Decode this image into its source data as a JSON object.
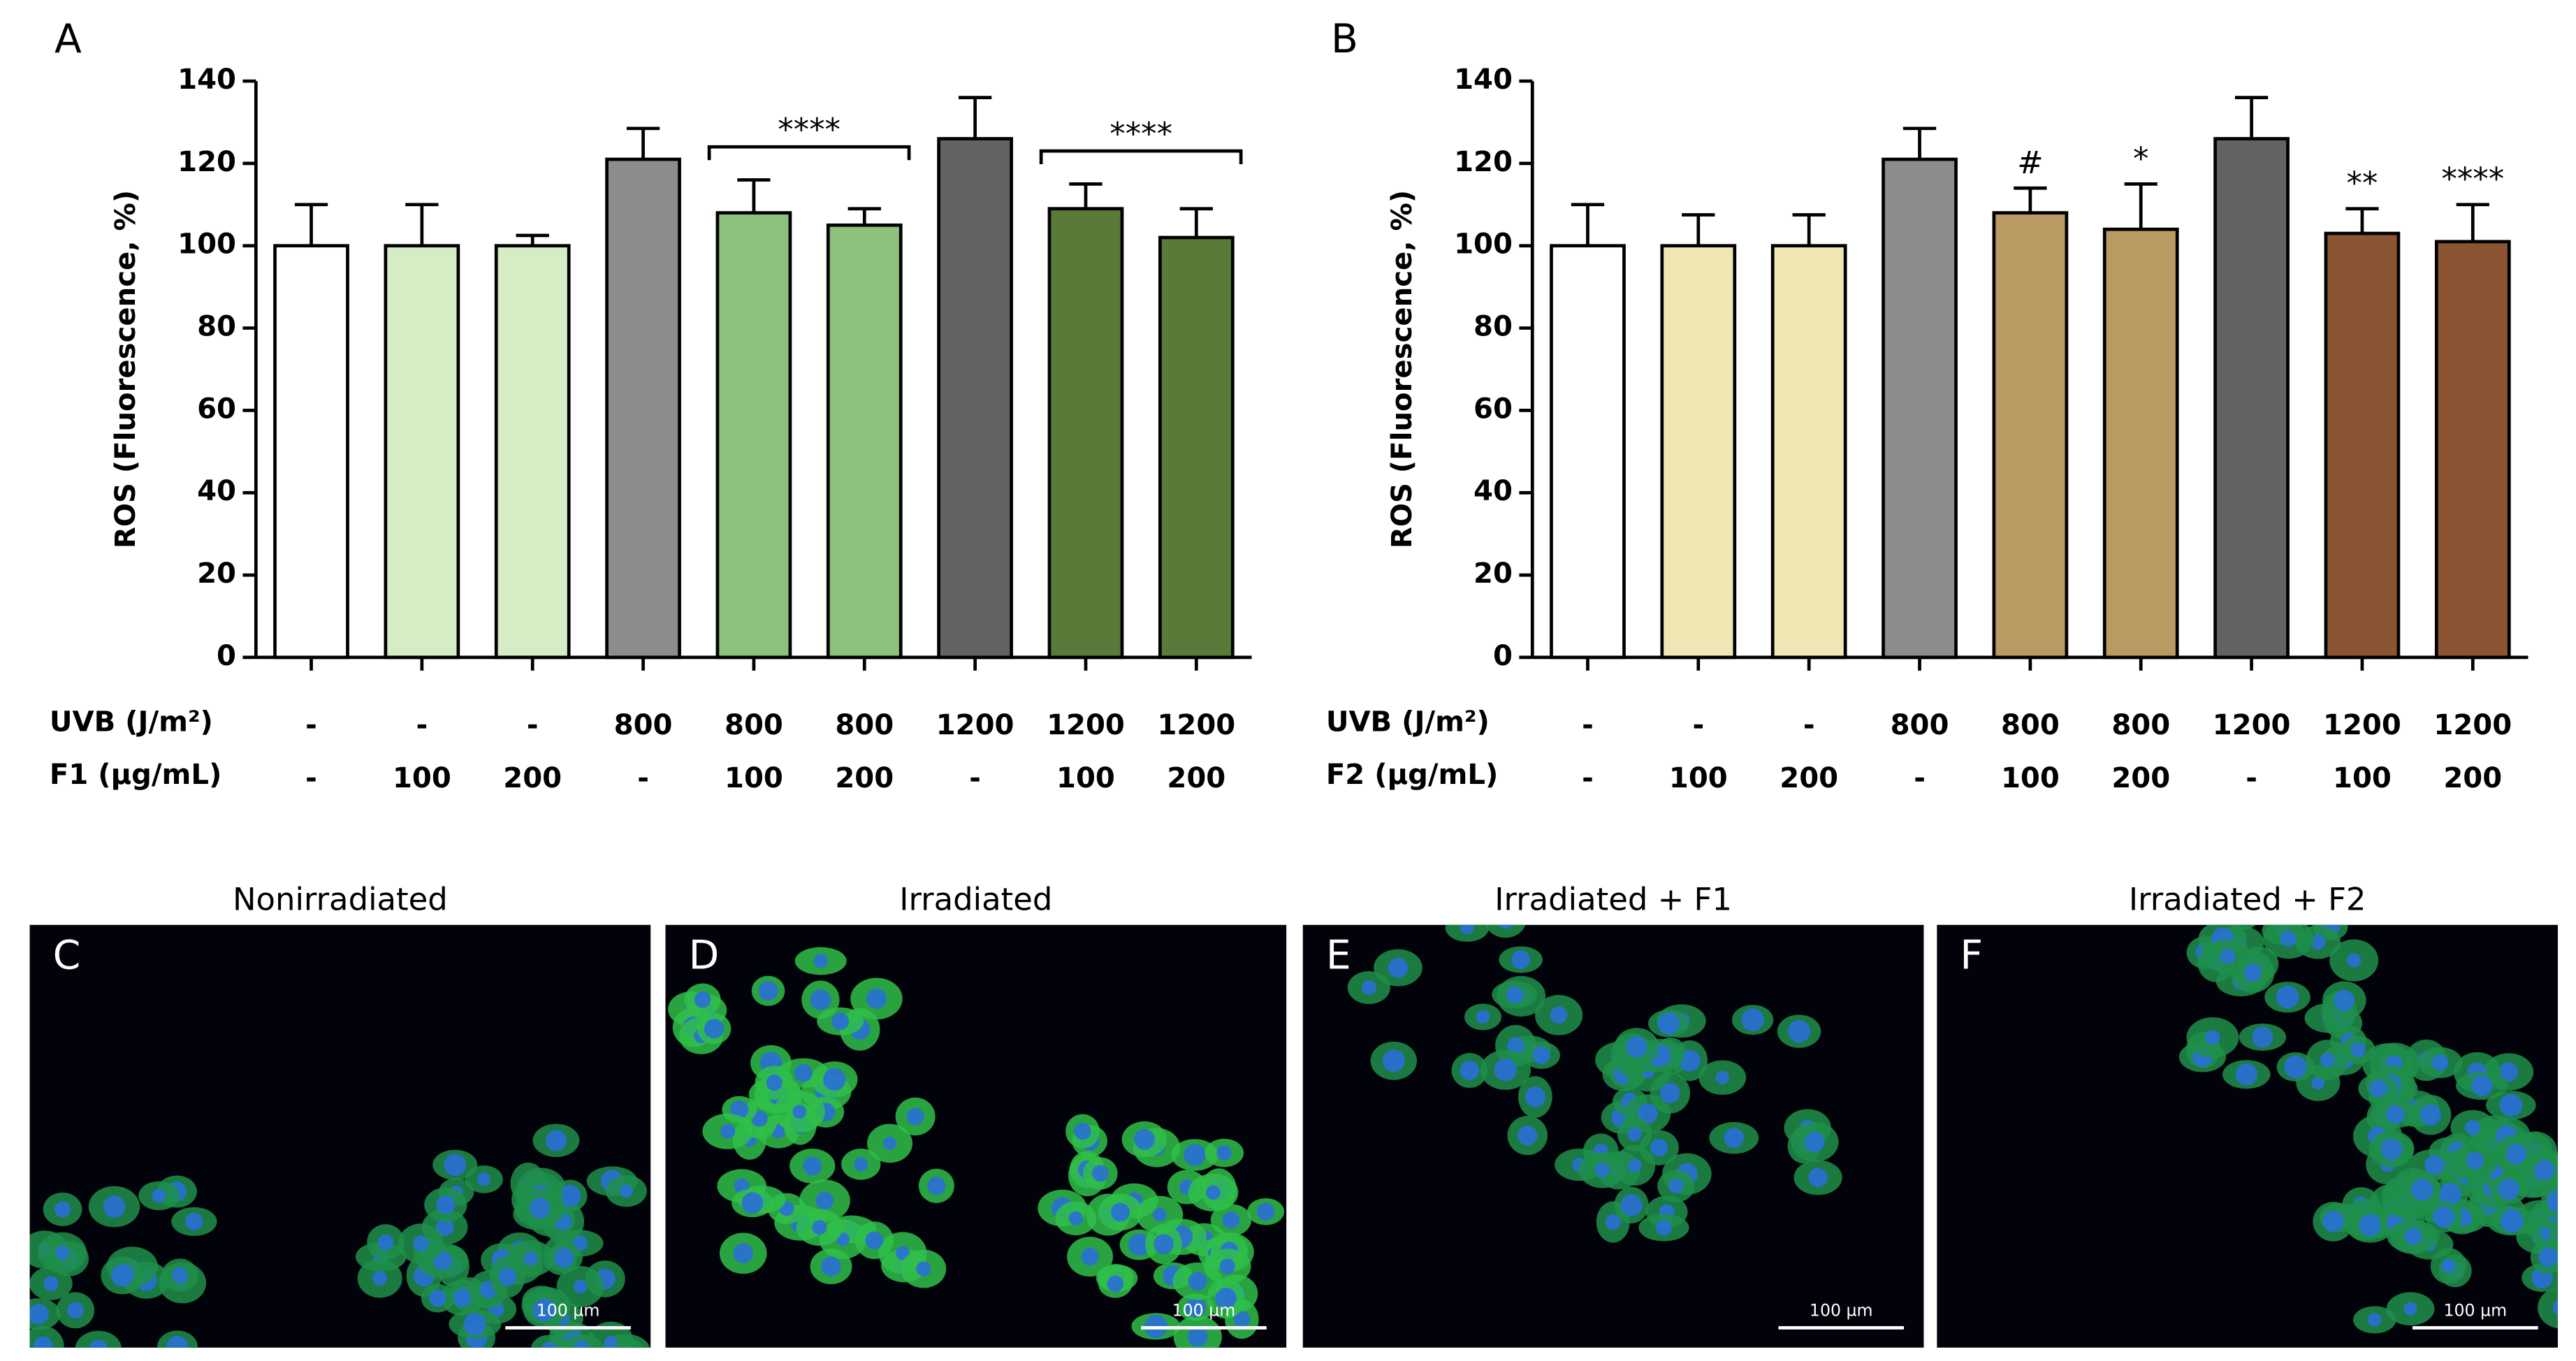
{
  "chart_data": [
    {
      "type": "bar",
      "panel": "A",
      "y_label": "ROS (Fluorescence, %)",
      "ylim": [
        0,
        140
      ],
      "yticks": [
        0,
        20,
        40,
        60,
        80,
        100,
        120,
        140
      ],
      "x_label_rows": [
        {
          "name": "UVB (J/m²)",
          "labels": [
            "-",
            "-",
            "-",
            "800",
            "800",
            "800",
            "1200",
            "1200",
            "1200"
          ]
        },
        {
          "name": "F1 (µg/mL)",
          "labels": [
            "-",
            "100",
            "200",
            "-",
            "100",
            "200",
            "-",
            "100",
            "200"
          ]
        }
      ],
      "series": [
        {
          "values": [
            100,
            100,
            100,
            121,
            108,
            105,
            126,
            109,
            102
          ],
          "errors": [
            10,
            10,
            2.5,
            7.5,
            8,
            4,
            10,
            6,
            7
          ],
          "colors": [
            "#ffffff",
            "#d5ecc5",
            "#d5ecc5",
            "#8c8c8c",
            "#8bc17a",
            "#8bc17a",
            "#636363",
            "#5a7a3a",
            "#5a7a3a"
          ]
        }
      ],
      "annotations": [
        {
          "text": "****",
          "bars": [
            4,
            5
          ]
        },
        {
          "text": "****",
          "bars": [
            7,
            8
          ]
        }
      ]
    },
    {
      "type": "bar",
      "panel": "B",
      "y_label": "ROS (Fluorescence, %)",
      "ylim": [
        0,
        140
      ],
      "yticks": [
        0,
        20,
        40,
        60,
        80,
        100,
        120,
        140
      ],
      "x_label_rows": [
        {
          "name": "UVB (J/m²)",
          "labels": [
            "-",
            "-",
            "-",
            "800",
            "800",
            "800",
            "1200",
            "1200",
            "1200"
          ]
        },
        {
          "name": "F2 (µg/mL)",
          "labels": [
            "-",
            "100",
            "200",
            "-",
            "100",
            "200",
            "-",
            "100",
            "200"
          ]
        }
      ],
      "series": [
        {
          "values": [
            100,
            100,
            100,
            121,
            108,
            104,
            126,
            103,
            101
          ],
          "errors": [
            10,
            7.5,
            7.5,
            7.5,
            6,
            11,
            10,
            6,
            9
          ],
          "colors": [
            "#ffffff",
            "#efe8b5",
            "#efe8b5",
            "#8c8c8c",
            "#b89a62",
            "#b89a62",
            "#636363",
            "#8b5533",
            "#8b5533"
          ]
        }
      ],
      "annotations": [
        {
          "text": "#",
          "bars": [
            4
          ]
        },
        {
          "text": "*",
          "bars": [
            5
          ]
        },
        {
          "text": "**",
          "bars": [
            7
          ]
        },
        {
          "text": "****",
          "bars": [
            8
          ]
        }
      ]
    }
  ],
  "images": [
    {
      "letter": "C",
      "title": "Nonirradiated",
      "scale_bar": "100 µm"
    },
    {
      "letter": "D",
      "title": "Irradiated",
      "scale_bar": "100 µm"
    },
    {
      "letter": "E",
      "title": "Irradiated + F1",
      "scale_bar": "100 µm"
    },
    {
      "letter": "F",
      "title": "Irradiated + F2",
      "scale_bar": "100 µm"
    }
  ]
}
